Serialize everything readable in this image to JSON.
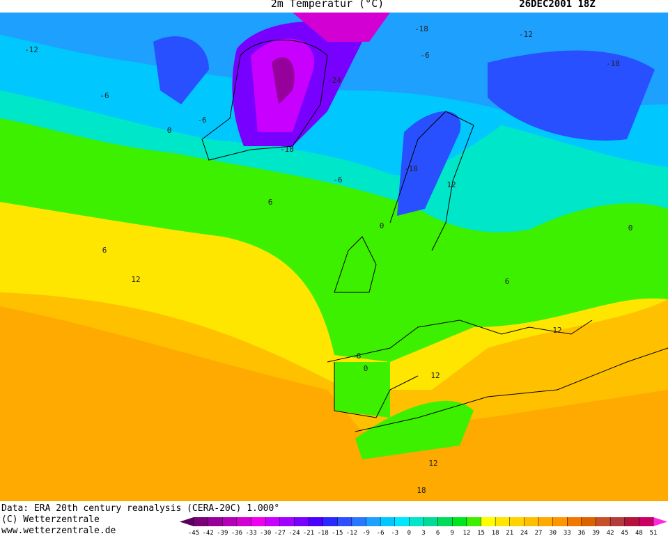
{
  "header": {
    "title": "2m Temperatur (°C)",
    "date": "26DEC2001 18Z"
  },
  "contour_labels": [
    -12,
    -6,
    0,
    -6,
    6,
    6,
    12,
    -18,
    -12,
    -6,
    -24,
    -18,
    -18,
    -6,
    12,
    0,
    -18,
    0,
    6,
    12,
    6,
    0,
    12,
    12,
    18
  ],
  "footer": {
    "source": "Data: ERA 20th century reanalysis (CERA-20C) 1.000°",
    "copyright": "(C) Wetterzentrale",
    "url": "www.wetterzentrale.de"
  },
  "colorbar": {
    "ticks": [
      -45,
      -42,
      -39,
      -36,
      -33,
      -30,
      -27,
      -24,
      -21,
      -18,
      -15,
      -12,
      -9,
      -6,
      -3,
      0,
      3,
      6,
      9,
      12,
      15,
      18,
      21,
      24,
      27,
      30,
      33,
      36,
      39,
      42,
      45,
      48,
      51
    ],
    "colors": [
      "#5a005a",
      "#7a007a",
      "#96009b",
      "#b400b4",
      "#d200d2",
      "#f000f0",
      "#c800ff",
      "#a000ff",
      "#7800ff",
      "#4b00ff",
      "#2828ff",
      "#2d50ff",
      "#2878ff",
      "#1ea0ff",
      "#00c8ff",
      "#00e6ff",
      "#00e6c8",
      "#00dc96",
      "#00dc5a",
      "#00e61e",
      "#3cf000",
      "#ffff00",
      "#ffe600",
      "#ffd200",
      "#ffbe00",
      "#ffaa00",
      "#ff9600",
      "#f07800",
      "#dc6400",
      "#c85028",
      "#b43c3c",
      "#b4143c",
      "#c80064",
      "#e60096",
      "#ff28dc"
    ]
  }
}
